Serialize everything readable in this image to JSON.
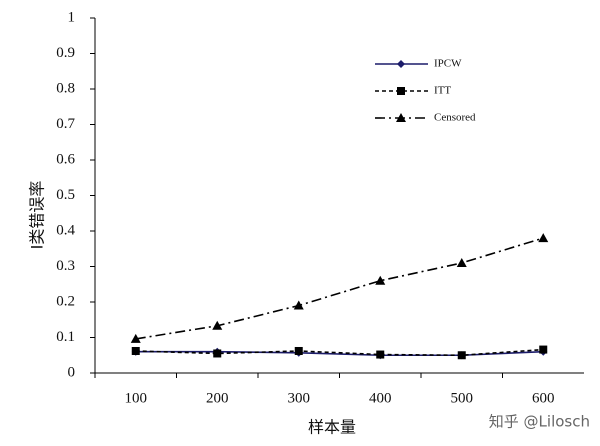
{
  "chart_data": {
    "type": "line",
    "y_label": "Ⅰ类错误率",
    "x_label": "样本量",
    "watermark": "知乎 @Lilosch",
    "categories": [
      "100",
      "200",
      "300",
      "400",
      "500",
      "600"
    ],
    "series": [
      {
        "name": "IPCW",
        "color": "#1c1c6a",
        "marker": "diamond",
        "dash": "none",
        "values": [
          0.06,
          0.06,
          0.057,
          0.05,
          0.05,
          0.06
        ]
      },
      {
        "name": "ITT",
        "color": "#000000",
        "marker": "square",
        "dash": "4 3",
        "values": [
          0.062,
          0.055,
          0.062,
          0.052,
          0.05,
          0.066
        ]
      },
      {
        "name": "Censored",
        "color": "#000000",
        "marker": "triangle",
        "dash": "10 4 2 4",
        "values": [
          0.096,
          0.133,
          0.19,
          0.26,
          0.31,
          0.38
        ]
      }
    ],
    "ylim": [
      0,
      1
    ],
    "yticks": [
      0,
      0.1,
      0.2,
      0.3,
      0.4,
      0.5,
      0.6,
      0.7,
      0.8,
      0.9,
      1
    ],
    "legend": "upper-right"
  }
}
